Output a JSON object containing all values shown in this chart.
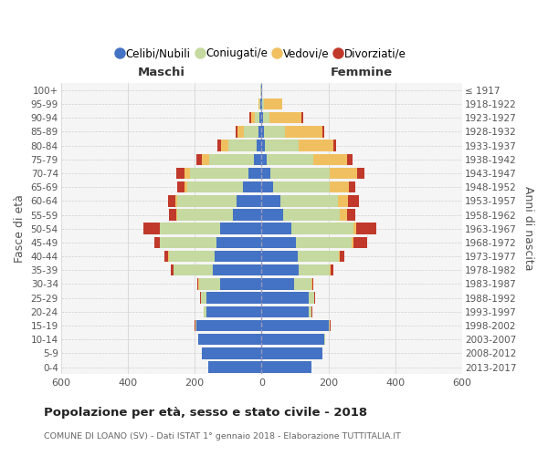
{
  "age_groups": [
    "100+",
    "95-99",
    "90-94",
    "85-89",
    "80-84",
    "75-79",
    "70-74",
    "65-69",
    "60-64",
    "55-59",
    "50-54",
    "45-49",
    "40-44",
    "35-39",
    "30-34",
    "25-29",
    "20-24",
    "15-19",
    "10-14",
    "5-9",
    "0-4"
  ],
  "birth_years": [
    "≤ 1917",
    "1918-1922",
    "1923-1927",
    "1928-1932",
    "1933-1937",
    "1938-1942",
    "1943-1947",
    "1948-1952",
    "1953-1957",
    "1958-1962",
    "1963-1967",
    "1968-1972",
    "1973-1977",
    "1978-1982",
    "1983-1987",
    "1988-1992",
    "1993-1997",
    "1998-2002",
    "2003-2007",
    "2008-2012",
    "2013-2017"
  ],
  "maschi": {
    "celibi": [
      2,
      3,
      5,
      10,
      15,
      22,
      38,
      55,
      75,
      85,
      125,
      135,
      140,
      145,
      125,
      165,
      165,
      195,
      188,
      178,
      158
    ],
    "coniugati": [
      1,
      3,
      15,
      42,
      85,
      135,
      175,
      168,
      178,
      168,
      178,
      168,
      138,
      118,
      62,
      16,
      8,
      3,
      1,
      0,
      0
    ],
    "vedovi": [
      0,
      2,
      10,
      20,
      22,
      22,
      16,
      8,
      5,
      3,
      2,
      2,
      1,
      1,
      1,
      0,
      0,
      0,
      0,
      0,
      0
    ],
    "divorziati": [
      0,
      0,
      5,
      5,
      10,
      15,
      27,
      22,
      22,
      22,
      48,
      16,
      12,
      8,
      5,
      3,
      1,
      1,
      0,
      0,
      0
    ]
  },
  "femmine": {
    "nubili": [
      2,
      3,
      5,
      8,
      10,
      16,
      26,
      36,
      56,
      66,
      88,
      102,
      108,
      112,
      98,
      142,
      142,
      202,
      188,
      182,
      148
    ],
    "coniugate": [
      0,
      5,
      20,
      62,
      102,
      138,
      178,
      168,
      172,
      168,
      188,
      168,
      122,
      92,
      52,
      16,
      8,
      3,
      1,
      0,
      0
    ],
    "vedove": [
      1,
      55,
      95,
      112,
      102,
      102,
      82,
      56,
      31,
      21,
      8,
      5,
      3,
      2,
      1,
      0,
      0,
      0,
      0,
      0,
      0
    ],
    "divorziate": [
      0,
      0,
      5,
      5,
      10,
      15,
      21,
      21,
      32,
      26,
      58,
      42,
      16,
      8,
      5,
      3,
      1,
      1,
      0,
      0,
      0
    ]
  },
  "colors": {
    "celibi": "#4472C4",
    "coniugati": "#C5D9A0",
    "vedovi": "#F0C060",
    "divorziati": "#C0392B"
  },
  "title": "Popolazione per età, sesso e stato civile - 2018",
  "subtitle": "COMUNE DI LOANO (SV) - Dati ISTAT 1° gennaio 2018 - Elaborazione TUTTITALIA.IT",
  "xlabel_left": "Maschi",
  "xlabel_right": "Femmine",
  "ylabel": "Fasce di età",
  "ylabel_right": "Anni di nascita",
  "xlim": 600,
  "background_color": "#ffffff",
  "plot_bg": "#f5f5f5",
  "grid_color": "#d0d0d0"
}
